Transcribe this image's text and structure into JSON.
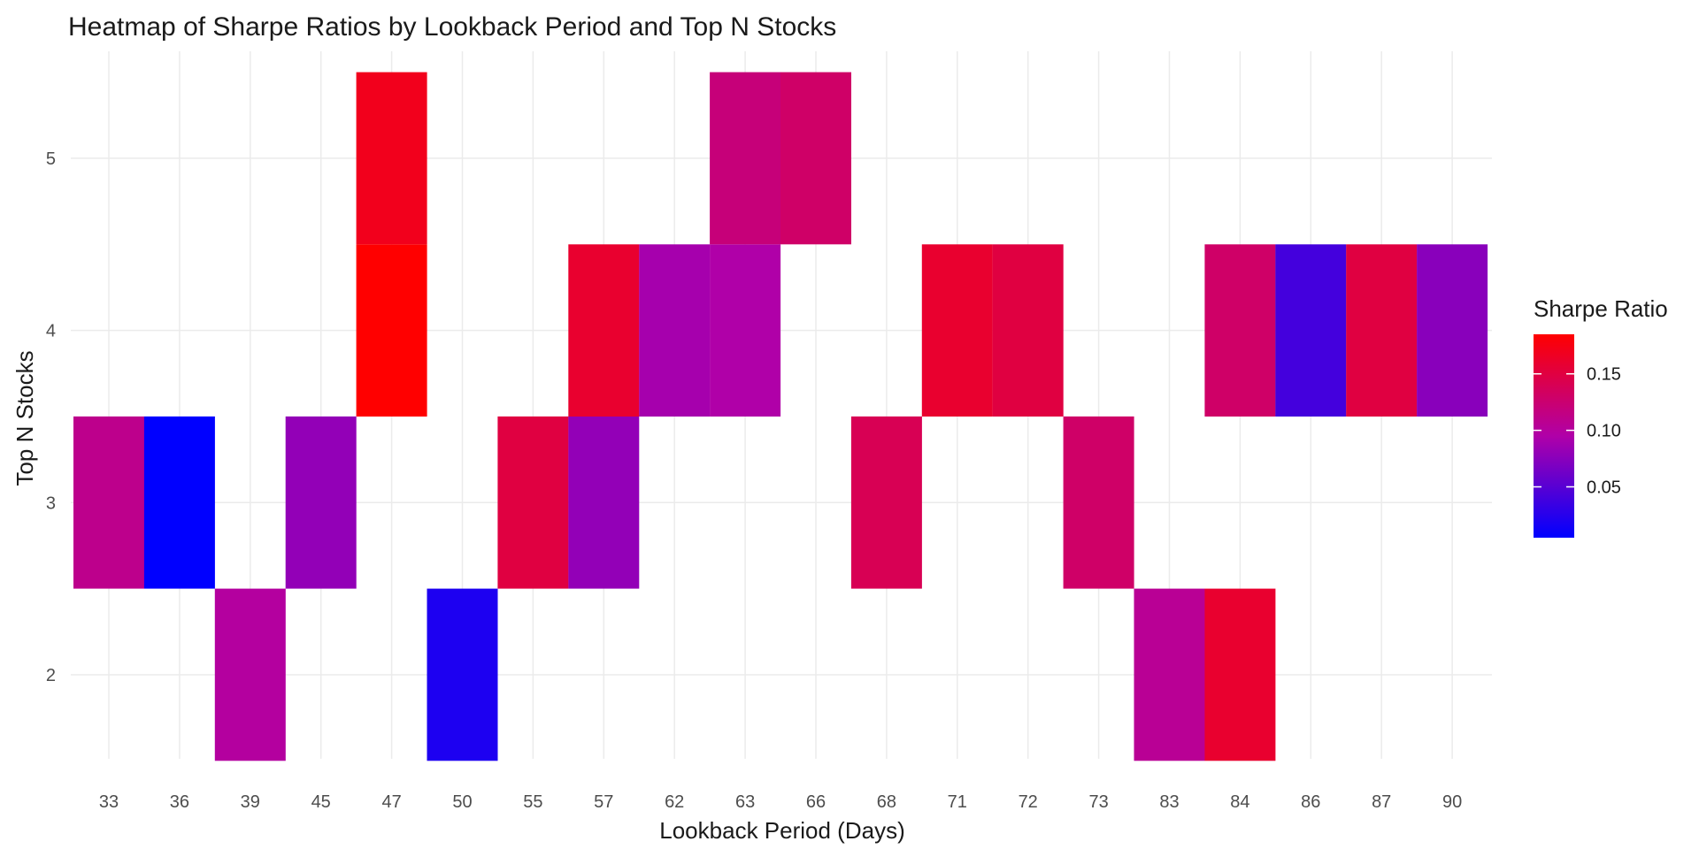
{
  "chart_data": {
    "type": "heatmap",
    "title": "Heatmap of Sharpe Ratios by Lookback Period and Top N Stocks",
    "xlabel": "Lookback Period (Days)",
    "ylabel": "Top N Stocks",
    "x_categories": [
      "33",
      "36",
      "39",
      "45",
      "47",
      "50",
      "55",
      "57",
      "62",
      "63",
      "66",
      "68",
      "71",
      "72",
      "73",
      "83",
      "84",
      "86",
      "87",
      "90"
    ],
    "y_ticks": [
      2,
      3,
      4,
      5
    ],
    "ylim": [
      1.5,
      5.5
    ],
    "grid": true,
    "legend": {
      "title": "Sharpe Ratio",
      "placement": "right",
      "ticks": [
        0.05,
        0.1,
        0.15
      ],
      "tick_labels": [
        "0.05",
        "0.10",
        "0.15"
      ],
      "range": [
        0.005,
        0.185
      ],
      "low_color": "#0000ff",
      "mid_color": "#b000a8",
      "high_color": "#ff0000"
    },
    "cells": [
      {
        "x": "33",
        "y": 3,
        "value": 0.11
      },
      {
        "x": "36",
        "y": 3,
        "value": 0.005
      },
      {
        "x": "39",
        "y": 2,
        "value": 0.1
      },
      {
        "x": "45",
        "y": 3,
        "value": 0.08
      },
      {
        "x": "47",
        "y": 4,
        "value": 0.185
      },
      {
        "x": "47",
        "y": 5,
        "value": 0.17
      },
      {
        "x": "50",
        "y": 2,
        "value": 0.02
      },
      {
        "x": "55",
        "y": 3,
        "value": 0.15
      },
      {
        "x": "57",
        "y": 3,
        "value": 0.08
      },
      {
        "x": "57",
        "y": 4,
        "value": 0.16
      },
      {
        "x": "62",
        "y": 4,
        "value": 0.09
      },
      {
        "x": "63",
        "y": 4,
        "value": 0.095
      },
      {
        "x": "63",
        "y": 5,
        "value": 0.12
      },
      {
        "x": "66",
        "y": 5,
        "value": 0.13
      },
      {
        "x": "68",
        "y": 3,
        "value": 0.14
      },
      {
        "x": "71",
        "y": 4,
        "value": 0.16
      },
      {
        "x": "72",
        "y": 4,
        "value": 0.15
      },
      {
        "x": "73",
        "y": 3,
        "value": 0.13
      },
      {
        "x": "83",
        "y": 2,
        "value": 0.105
      },
      {
        "x": "84",
        "y": 2,
        "value": 0.16
      },
      {
        "x": "84",
        "y": 4,
        "value": 0.13
      },
      {
        "x": "86",
        "y": 4,
        "value": 0.04
      },
      {
        "x": "87",
        "y": 4,
        "value": 0.15
      },
      {
        "x": "90",
        "y": 4,
        "value": 0.075
      }
    ]
  }
}
